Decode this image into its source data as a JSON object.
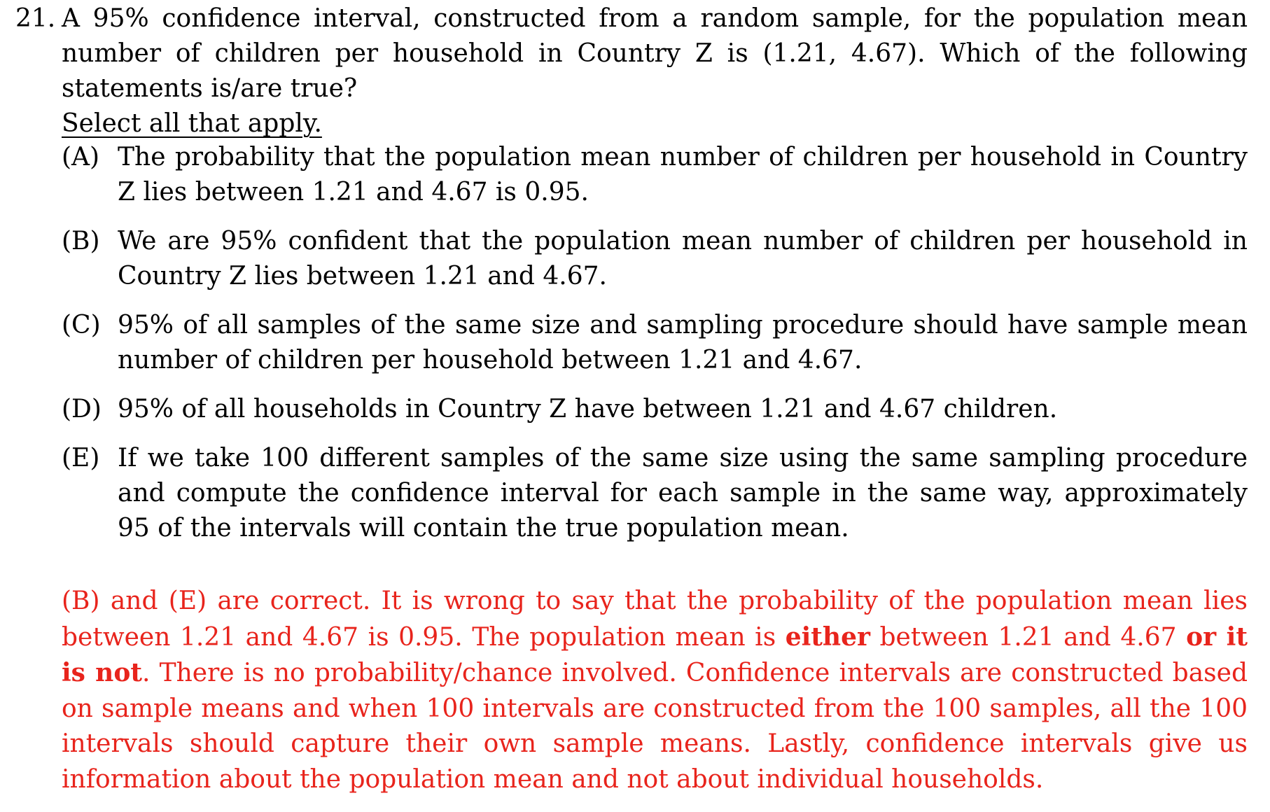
{
  "question": {
    "number": "21.",
    "text": "A 95% confidence interval, constructed from a random sample, for the population mean number of children per household in Country Z is (1.21, 4.67). Which of the following statements is/are true?",
    "instruction": "Select all that apply."
  },
  "options": [
    {
      "letter": "(A)",
      "text": "The probability that the population mean number of children per household in Country Z lies between 1.21 and 4.67 is 0.95."
    },
    {
      "letter": "(B)",
      "text": "We are 95% confident that the population mean number of children per household in Country Z lies between 1.21 and 4.67."
    },
    {
      "letter": "(C)",
      "text": "95% of all samples of the same size and sampling procedure should have sample mean number of children per household between 1.21 and 4.67."
    },
    {
      "letter": "(D)",
      "text": "95% of all households in Country Z have between 1.21 and 4.67 children."
    },
    {
      "letter": "(E)",
      "text": "If we take 100 different samples of the same size using the same sampling procedure and compute the confidence interval for each sample in the same way, approximately 95 of the intervals will contain the true population mean."
    }
  ],
  "answer": {
    "part1": "(B) and (E) are correct. It is wrong to say that the probability of the population mean lies between 1.21 and 4.67 is 0.95. The population mean is ",
    "bold1": "either",
    "part2": " between 1.21 and 4.67 ",
    "bold2": "or it is not",
    "part3": ". There is no probability/chance involved. Confidence intervals are constructed based on sample means and when 100 intervals are constructed from the 100 samples, all the 100 intervals should capture their own sample means. Lastly, confidence intervals give us information about the population mean and not about individual households.",
    "color": "#e8241c"
  }
}
